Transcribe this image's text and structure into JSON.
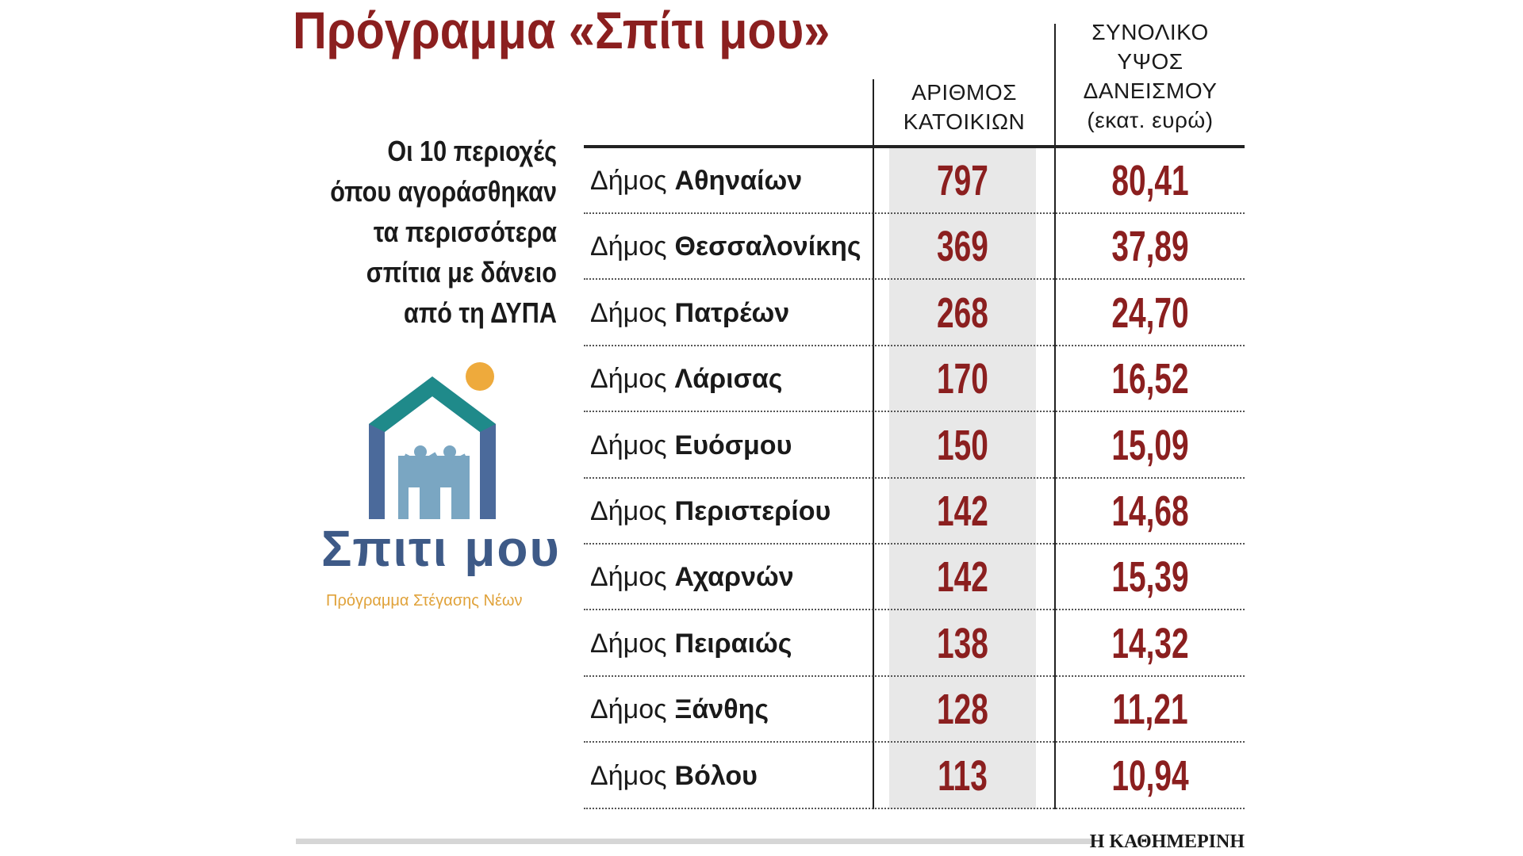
{
  "title": "Πρόγραμμα «Σπίτι μου»",
  "subtitle": [
    "Οι 10 περιοχές",
    "όπου αγοράσθηκαν",
    "τα περισσότερα",
    "σπίτια με δάνειο",
    "από τη ΔΥΠΑ"
  ],
  "logo": {
    "name": "Σπιτι μου",
    "tagline": "Πρόγραμμα Στέγασης Νέων"
  },
  "table": {
    "headers": [
      [
        "ΑΡΙΘΜΟΣ",
        "ΚΑΤΟΙΚΙΩΝ"
      ],
      [
        "ΣΥΝΟΛΙΚΟ",
        "ΥΨΟΣ",
        "ΔΑΝΕΙΣΜΟΥ",
        "(εκατ. ευρώ)"
      ]
    ],
    "rows": [
      {
        "prefix": "Δήμος",
        "name": "Αθηναίων",
        "count": "797",
        "loan": "80,41"
      },
      {
        "prefix": "Δήμος",
        "name": "Θεσσαλονίκης",
        "count": "369",
        "loan": "37,89"
      },
      {
        "prefix": "Δήμος",
        "name": "Πατρέων",
        "count": "268",
        "loan": "24,70"
      },
      {
        "prefix": "Δήμος",
        "name": "Λάρισας",
        "count": "170",
        "loan": "16,52"
      },
      {
        "prefix": "Δήμος",
        "name": "Ευόσμου",
        "count": "150",
        "loan": "15,09"
      },
      {
        "prefix": "Δήμος",
        "name": "Περιστερίου",
        "count": "142",
        "loan": "14,68"
      },
      {
        "prefix": "Δήμος",
        "name": "Αχαρνών",
        "count": "142",
        "loan": "15,39"
      },
      {
        "prefix": "Δήμος",
        "name": "Πειραιώς",
        "count": "138",
        "loan": "14,32"
      },
      {
        "prefix": "Δήμος",
        "name": "Ξάνθης",
        "count": "128",
        "loan": "11,21"
      },
      {
        "prefix": "Δήμος",
        "name": "Βόλου",
        "count": "113",
        "loan": "10,94"
      }
    ]
  },
  "footer": "Η ΚΑΘΗΜΕΡΙΝΗ"
}
